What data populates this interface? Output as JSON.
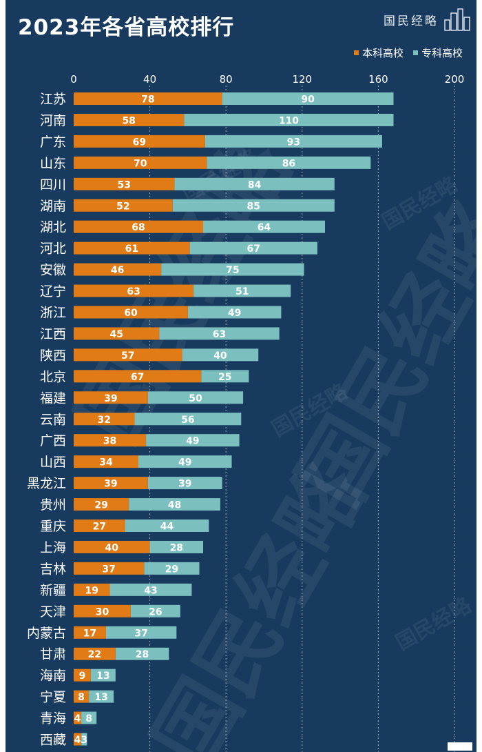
{
  "header": {
    "title": "2023年各省高校排行",
    "brand": "国民经略"
  },
  "colors": {
    "background": "#173a5e",
    "undergraduate": "#e07b15",
    "vocational": "#7bbfbf",
    "grid": "#c9d3dd"
  },
  "legend": {
    "undergraduate_label": "本科高校",
    "vocational_label": "专科高校"
  },
  "chart_data": {
    "type": "bar",
    "orientation": "horizontal",
    "stacked": true,
    "title": "2023年各省高校排行",
    "xlim": [
      0,
      200
    ],
    "xticks": [
      0,
      40,
      80,
      120,
      160,
      200
    ],
    "grid": true,
    "legend_position": "top-right",
    "categories": [
      "江苏",
      "河南",
      "广东",
      "山东",
      "四川",
      "湖南",
      "湖北",
      "河北",
      "安徽",
      "辽宁",
      "浙江",
      "江西",
      "陕西",
      "北京",
      "福建",
      "云南",
      "广西",
      "山西",
      "黑龙江",
      "贵州",
      "重庆",
      "上海",
      "吉林",
      "新疆",
      "天津",
      "内蒙古",
      "甘肃",
      "海南",
      "宁夏",
      "青海",
      "西藏"
    ],
    "series": [
      {
        "name": "本科高校",
        "values": [
          78,
          58,
          69,
          70,
          53,
          52,
          68,
          61,
          46,
          63,
          60,
          45,
          57,
          67,
          39,
          32,
          38,
          34,
          39,
          29,
          27,
          40,
          37,
          19,
          30,
          17,
          22,
          9,
          8,
          4,
          4
        ]
      },
      {
        "name": "专科高校",
        "values": [
          90,
          110,
          93,
          86,
          84,
          85,
          64,
          67,
          75,
          51,
          49,
          63,
          40,
          25,
          50,
          56,
          49,
          49,
          39,
          48,
          44,
          28,
          29,
          43,
          26,
          37,
          28,
          13,
          13,
          8,
          3
        ]
      }
    ]
  }
}
